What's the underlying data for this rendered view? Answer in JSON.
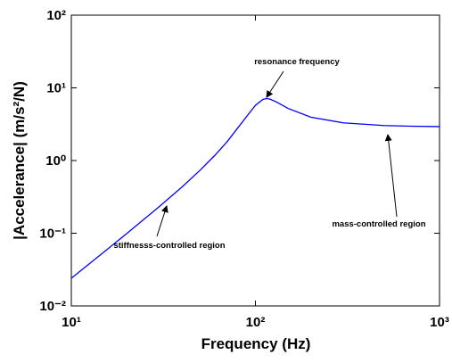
{
  "chart_data": {
    "type": "line",
    "xlabel": "Frequency (Hz)",
    "ylabel": "|Accelerance| (m/s²/N)",
    "x": [
      10,
      15,
      20,
      30,
      40,
      50,
      60,
      70,
      80,
      90,
      100,
      110,
      115,
      120,
      130,
      150,
      200,
      300,
      500,
      700,
      1000
    ],
    "values": [
      0.024,
      0.0549,
      0.099,
      0.232,
      0.435,
      0.734,
      1.168,
      1.8,
      2.79,
      4.09,
      5.75,
      6.96,
      7.12,
      7.0,
      6.4,
      5.23,
      3.95,
      3.3,
      3.03,
      2.97,
      2.93
    ],
    "color": "#0000ff",
    "xscale": "log",
    "yscale": "log",
    "xlim": [
      10,
      1000
    ],
    "ylim": [
      0.01,
      100
    ],
    "xticks": [
      {
        "value": 10,
        "label": "10¹"
      },
      {
        "value": 100,
        "label": "10²"
      },
      {
        "value": 1000,
        "label": "10³"
      }
    ],
    "yticks": [
      {
        "value": 0.01,
        "label": "10⁻²"
      },
      {
        "value": 0.1,
        "label": "10⁻¹"
      },
      {
        "value": 1,
        "label": "10⁰"
      },
      {
        "value": 10,
        "label": "10¹"
      },
      {
        "value": 100,
        "label": "10²"
      }
    ],
    "annotations": [
      "resonance frequency",
      "stiffnesss-controlled region",
      "mass-controlled region"
    ]
  }
}
